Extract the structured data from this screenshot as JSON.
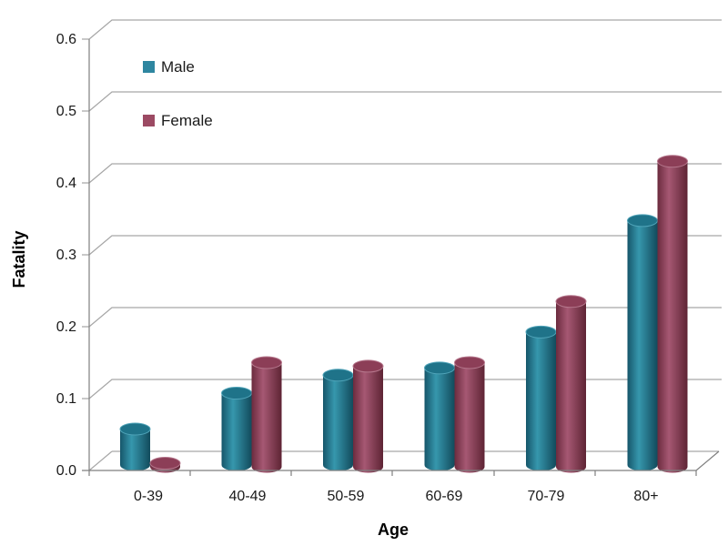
{
  "chart_data": {
    "type": "bar",
    "subtype": "3d-cylinder-clustered",
    "title": "",
    "xlabel": "Age",
    "ylabel": "Fatality",
    "categories": [
      "0-39",
      "40-49",
      "50-59",
      "60-69",
      "70-79",
      "80+"
    ],
    "series": [
      {
        "name": "Male",
        "values": [
          0.05,
          0.1,
          0.125,
          0.135,
          0.185,
          0.34
        ],
        "color": "#2E86A0",
        "shades": {
          "edge_left": "#16566A",
          "mid": "#3697AD",
          "edge_right": "#124B5C",
          "top": "#1F7389",
          "rim": "#4FA3B8"
        }
      },
      {
        "name": "Female",
        "values": [
          0.005,
          0.145,
          0.14,
          0.145,
          0.23,
          0.425
        ],
        "color": "#9C4A63",
        "shades": {
          "edge_left": "#6B2B3E",
          "mid": "#A65873",
          "edge_right": "#5E2434",
          "top": "#8C3E57",
          "rim": "#B5778C"
        }
      }
    ],
    "ylim": [
      0,
      0.6
    ],
    "ytick_labels": [
      "0.0",
      "0.1",
      "0.2",
      "0.3",
      "0.4",
      "0.5",
      "0.6"
    ],
    "grid": true,
    "legend_position": "inside-top-left",
    "gridline_color": "#A6A6A6",
    "axis_color": "#7F7F7F",
    "text_color": "#1A1A1A",
    "background_color": "#FFFFFF"
  }
}
